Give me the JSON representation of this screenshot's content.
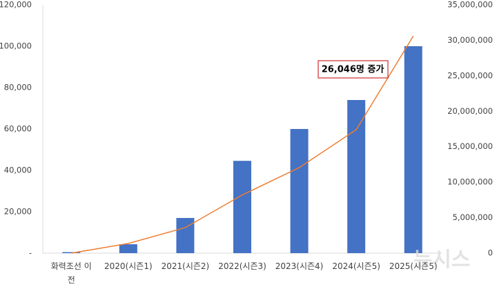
{
  "chart_data": {
    "type": "bar_line",
    "categories": [
      "화력조선 이전",
      "2020(시즌1)",
      "2021(시즌2)",
      "2022(시즌3)",
      "2023(시즌4)",
      "2024(시즌5)",
      "2025(시즌5)"
    ],
    "series": [
      {
        "type": "bar",
        "color": "#4472c4",
        "values": [
          500,
          4300,
          17000,
          44600,
          60000,
          74000,
          100000
        ]
      },
      {
        "type": "line",
        "color": "#ed7d31",
        "axis": "y2",
        "values": [
          0,
          1360000,
          3600000,
          8200000,
          12060000,
          17400000,
          30600000
        ]
      }
    ],
    "ylim": [
      0,
      120000
    ],
    "yticks": [
      {
        "value": 0,
        "label": "-"
      },
      {
        "value": 20000,
        "label": "20,000"
      },
      {
        "value": 40000,
        "label": "40,000"
      },
      {
        "value": 60000,
        "label": "60,000"
      },
      {
        "value": 80000,
        "label": "80,000"
      },
      {
        "value": 100000,
        "label": "100,000"
      },
      {
        "value": 120000,
        "label": "120,000"
      }
    ],
    "y2lim": [
      0,
      35000000
    ],
    "y2ticks": [
      0,
      {
        "value": 5000000,
        "label": "5,000,000"
      },
      {
        "value": 10000000,
        "label": "10,000,000"
      },
      {
        "value": 15000000,
        "label": "15,000,000"
      },
      {
        "value": 20000000,
        "label": "20,000,000"
      },
      {
        "value": 25000000,
        "label": "25,000,000"
      },
      {
        "value": 30000000,
        "label": "30,000,000"
      },
      {
        "value": 35000000,
        "label": "35,000,000"
      }
    ],
    "annotation": "26,046명 증가",
    "watermark": "뉴시스"
  }
}
